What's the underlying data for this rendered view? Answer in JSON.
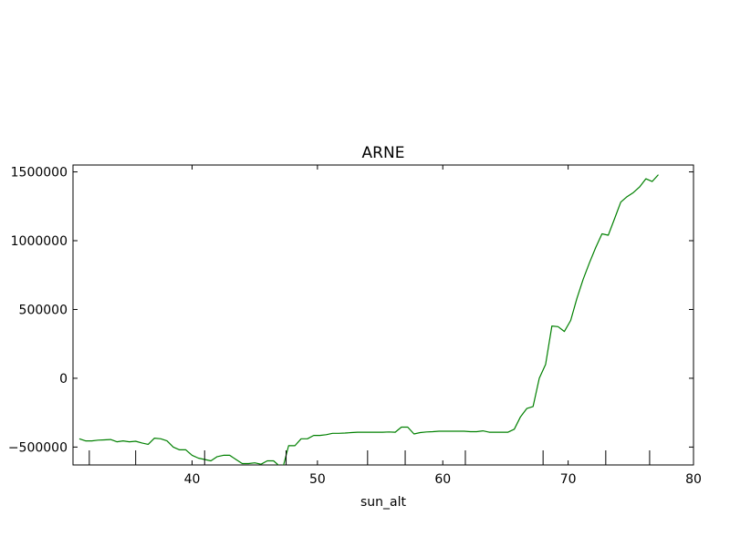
{
  "chart_data": {
    "type": "line",
    "title": "ARNE",
    "xlabel": "sun_alt",
    "ylabel": "",
    "xlim": [
      30.5,
      80
    ],
    "ylim": [
      -630000,
      1550000
    ],
    "grid": false,
    "x_ticks": [
      40,
      50,
      60,
      70,
      80
    ],
    "y_ticks": [
      1500000,
      1000000,
      500000,
      0,
      -500000
    ],
    "x_tick_labels": [
      "40",
      "50",
      "60",
      "70",
      "80"
    ],
    "y_tick_labels": [
      "1500000",
      "1000000",
      "500000",
      "0",
      "−500000"
    ],
    "line_color": "#008000",
    "rug_x": [
      31.8,
      35.5,
      41.0,
      47.5,
      54.0,
      57.0,
      61.8,
      68.0,
      73.0,
      76.5
    ],
    "series": [
      {
        "x": [
          31.0,
          31.5,
          32.0,
          32.5,
          33.0,
          33.5,
          34.0,
          34.5,
          35.0,
          35.5,
          36.0,
          36.5,
          37.0,
          37.5,
          38.0,
          38.5,
          39.0,
          39.5,
          40.0,
          40.5,
          41.0,
          41.5,
          42.0,
          42.5,
          43.0,
          43.5,
          44.0,
          44.5,
          45.0,
          45.5,
          46.0,
          46.5,
          47.0,
          47.3,
          47.7,
          48.2,
          48.7,
          49.2,
          49.7,
          50.2,
          50.7,
          51.2,
          51.7,
          52.2,
          52.7,
          53.2,
          53.7,
          54.2,
          54.7,
          55.2,
          55.7,
          56.2,
          56.7,
          57.2,
          57.7,
          58.2,
          58.7,
          59.2,
          59.7,
          60.2,
          60.7,
          61.2,
          61.7,
          62.2,
          62.7,
          63.2,
          63.7,
          64.2,
          64.7,
          65.2,
          65.7,
          66.2,
          66.7,
          67.2,
          67.7,
          68.2,
          68.7,
          69.2,
          69.7,
          70.2,
          70.7,
          71.2,
          71.7,
          72.2,
          72.7,
          73.2,
          73.7,
          74.2,
          74.7,
          75.2,
          75.7,
          76.2,
          76.7,
          77.2
        ],
        "y": [
          -440000,
          -455000,
          -455000,
          -450000,
          -448000,
          -445000,
          -462000,
          -455000,
          -462000,
          -458000,
          -470000,
          -480000,
          -435000,
          -440000,
          -455000,
          -500000,
          -520000,
          -520000,
          -560000,
          -580000,
          -590000,
          -600000,
          -570000,
          -560000,
          -560000,
          -590000,
          -620000,
          -620000,
          -615000,
          -625000,
          -600000,
          -600000,
          -640000,
          -630000,
          -490000,
          -490000,
          -440000,
          -440000,
          -415000,
          -415000,
          -410000,
          -400000,
          -400000,
          -398000,
          -395000,
          -392000,
          -392000,
          -392000,
          -392000,
          -392000,
          -390000,
          -392000,
          -355000,
          -355000,
          -405000,
          -395000,
          -390000,
          -388000,
          -385000,
          -385000,
          -385000,
          -385000,
          -385000,
          -388000,
          -388000,
          -382000,
          -392000,
          -392000,
          -392000,
          -392000,
          -370000,
          -280000,
          -220000,
          -205000,
          0,
          100000,
          380000,
          375000,
          340000,
          420000,
          580000,
          720000,
          840000,
          950000,
          1050000,
          1040000,
          1160000,
          1280000,
          1320000,
          1350000,
          1390000,
          1450000,
          1430000,
          1480000
        ]
      }
    ]
  }
}
